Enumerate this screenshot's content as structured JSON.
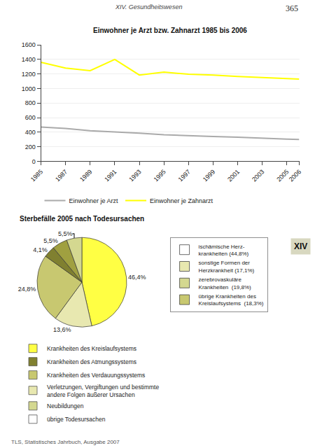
{
  "chart_data": [
    {
      "type": "line",
      "title": "Einwohner je Arzt bzw. Zahnarzt 1985 bis 2006",
      "x": [
        1985,
        1987,
        1989,
        1991,
        1993,
        1995,
        1997,
        1999,
        2001,
        2003,
        2005,
        2006
      ],
      "series": [
        {
          "name": "Einwohner je Arzt",
          "color": "#aaaaaa",
          "values": [
            470,
            450,
            420,
            405,
            385,
            365,
            350,
            340,
            330,
            315,
            305,
            300
          ]
        },
        {
          "name": "Einwohner je Zahnarzt",
          "color": "#ffff00",
          "values": [
            1360,
            1280,
            1245,
            1400,
            1185,
            1225,
            1195,
            1185,
            1165,
            1150,
            1140,
            1130
          ]
        }
      ],
      "xlim": [
        1985,
        2006
      ],
      "xticks": [
        1985,
        1987,
        1989,
        1991,
        1993,
        1995,
        1997,
        1999,
        2001,
        2003,
        2005,
        2006
      ],
      "ylim": [
        0,
        1600
      ],
      "yticks": [
        0,
        200,
        400,
        600,
        800,
        1000,
        1200,
        1400,
        1600
      ],
      "grid": true
    },
    {
      "type": "pie",
      "title": "Sterbefälle 2005 nach Todesursachen",
      "values": [
        46.4,
        13.6,
        24.8,
        4.1,
        5.5,
        5.5
      ],
      "value_labels": [
        "46,4%",
        "13,6%",
        "24,8%",
        "4,1%",
        "5,5%",
        "5,5%"
      ],
      "colors": [
        "#ffff44",
        "#e8e8b0",
        "#c8c870",
        "#808030",
        "#a0a040",
        "#d4d890"
      ],
      "series": [
        {
          "name": "Krankheiten des Kreislaufsystems",
          "color": "#ffff44"
        },
        {
          "name": "Krankheiten des Atmungssystems",
          "color": "#808030"
        },
        {
          "name": "Krankheiten des Verdauungssystems",
          "color": "#c8c870"
        },
        {
          "name": "Verletzungen, Vergiftungen und bestimmte\nandere Folgen äußerer Ursachen",
          "color": "#e8e8b0"
        },
        {
          "name": "Neubildungen",
          "color": "#d4d890"
        },
        {
          "name": "übrige Todesursachen",
          "color": "#ffffff"
        }
      ],
      "annotations": [
        {
          "text": "ischämische Herz-\nkrankheiten (44,8%)",
          "color": "#ffffff"
        },
        {
          "text": "sonstige Formen der\nHerzkrankheit (17,1%)",
          "color": "#e8e8b0"
        },
        {
          "text": "zerebrovaskuläre\nKrankheiten  (19,8%)",
          "color": "#d4d890"
        },
        {
          "text": "übrige Krankheiten des\nKreislaufsystems  (18,3%)",
          "color": "#c8c870"
        }
      ]
    }
  ],
  "annotations": [
    "365",
    "XIV. Gesundheitswesen",
    "TLS, Statistisches Jahrbuch, Ausgabe 2007",
    "XIV"
  ]
}
